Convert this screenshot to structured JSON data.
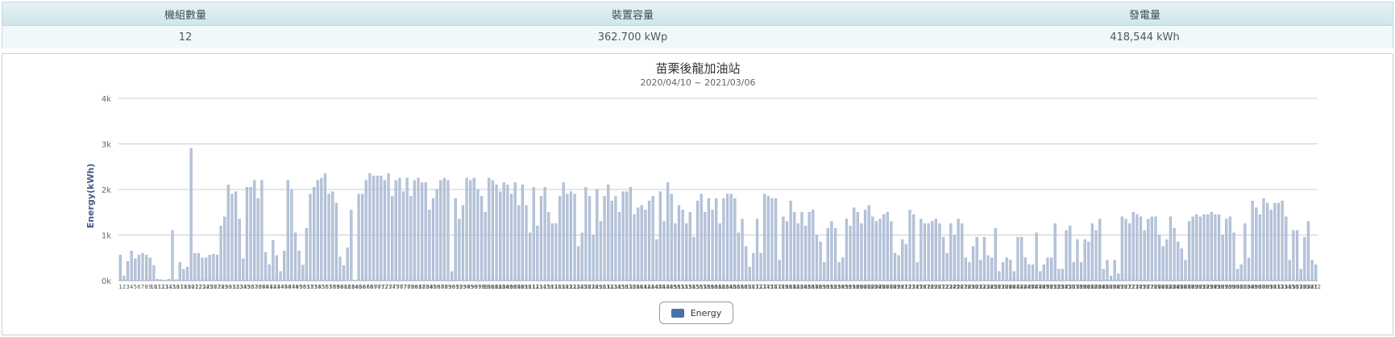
{
  "summary": {
    "headers": [
      "機組數量",
      "裝置容量",
      "發電量"
    ],
    "values": [
      "12",
      "362.700 kWp",
      "418,544 kWh"
    ]
  },
  "chart_data": {
    "type": "bar",
    "title": "苗栗後龍加油站",
    "subtitle": "2020/04/10 ~ 2021/03/06",
    "ylabel": "Energy(kWh)",
    "xlabel": "",
    "ylim": [
      0,
      4000
    ],
    "y_ticks": [
      "0k",
      "1k",
      "2k",
      "3k",
      "4k"
    ],
    "grid": true,
    "legend_position": "bottom",
    "bar_color": "#b5c4dc",
    "bar_edge_color": "#8a9cb8",
    "series": [
      {
        "name": "Energy",
        "color": "#4a72a8",
        "values": [
          560,
          100,
          420,
          650,
          480,
          560,
          600,
          560,
          500,
          330,
          30,
          20,
          10,
          30,
          1100,
          20,
          400,
          250,
          300,
          2900,
          600,
          600,
          500,
          500,
          560,
          580,
          560,
          1200,
          1400,
          2100,
          1900,
          1950,
          1350,
          480,
          2050,
          2050,
          2200,
          1800,
          2200,
          620,
          350,
          880,
          550,
          200,
          650,
          2200,
          2000,
          1050,
          650,
          340,
          1150,
          1900,
          2050,
          2200,
          2250,
          2350,
          1900,
          1950,
          1700,
          520,
          330,
          720,
          1550,
          10,
          1900,
          1900,
          2200,
          2350,
          2300,
          2300,
          2300,
          2200,
          2350,
          1850,
          2200,
          2250,
          1950,
          2250,
          1850,
          2200,
          2250,
          2150,
          2150,
          1550,
          1800,
          2000,
          2200,
          2250,
          2200,
          200,
          1800,
          1350,
          1650,
          2250,
          2200,
          2250,
          2000,
          1850,
          1500,
          2250,
          2200,
          2100,
          1950,
          2150,
          2100,
          1900,
          2150,
          1650,
          2100,
          1650,
          1050,
          2050,
          1200,
          1850,
          2050,
          1500,
          1250,
          1250,
          1850,
          2150,
          1900,
          1950,
          1900,
          750,
          1050,
          2050,
          1850,
          1000,
          2000,
          1300,
          1850,
          2100,
          1750,
          1850,
          1500,
          1950,
          1950,
          2050,
          1450,
          1600,
          1650,
          1550,
          1750,
          1850,
          900,
          1950,
          1300,
          2150,
          1900,
          1250,
          1650,
          1550,
          1250,
          1500,
          950,
          1750,
          1900,
          1500,
          1800,
          1550,
          1800,
          1250,
          1800,
          1900,
          1900,
          1800,
          1050,
          1350,
          750,
          300,
          600,
          1350,
          600,
          1900,
          1850,
          1800,
          1800,
          450,
          1400,
          1300,
          1750,
          1500,
          1250,
          1500,
          1200,
          1500,
          1550,
          1000,
          850,
          400,
          1150,
          1300,
          1150,
          400,
          500,
          1350,
          1200,
          1600,
          1500,
          1250,
          1550,
          1650,
          1400,
          1300,
          1350,
          1450,
          1500,
          1300,
          600,
          550,
          900,
          800,
          1550,
          1450,
          400,
          1350,
          1250,
          1250,
          1300,
          1350,
          1250,
          950,
          600,
          1250,
          1000,
          1350,
          1250,
          500,
          400,
          750,
          950,
          450,
          950,
          550,
          500,
          1150,
          200,
          400,
          500,
          450,
          200,
          950,
          950,
          500,
          350,
          350,
          1050,
          200,
          350,
          500,
          500,
          1250,
          250,
          250,
          1100,
          1200,
          400,
          900,
          400,
          900,
          850,
          1250,
          1100,
          1350,
          250,
          450,
          100,
          450,
          150,
          1400,
          1350,
          1250,
          1500,
          1450,
          1400,
          1100,
          1350,
          1400,
          1400,
          1000,
          750,
          900,
          1400,
          1150,
          850,
          700,
          450,
          1300,
          1400,
          1450,
          1400,
          1450,
          1450,
          1500,
          1450,
          1450,
          1000,
          1350,
          1400,
          1050,
          250,
          350,
          1250,
          500,
          1750,
          1600,
          1450,
          1800,
          1700,
          1550,
          1700,
          1700,
          1750,
          1400,
          450,
          1100,
          1100,
          250,
          950,
          1300,
          450,
          350
        ]
      }
    ]
  }
}
